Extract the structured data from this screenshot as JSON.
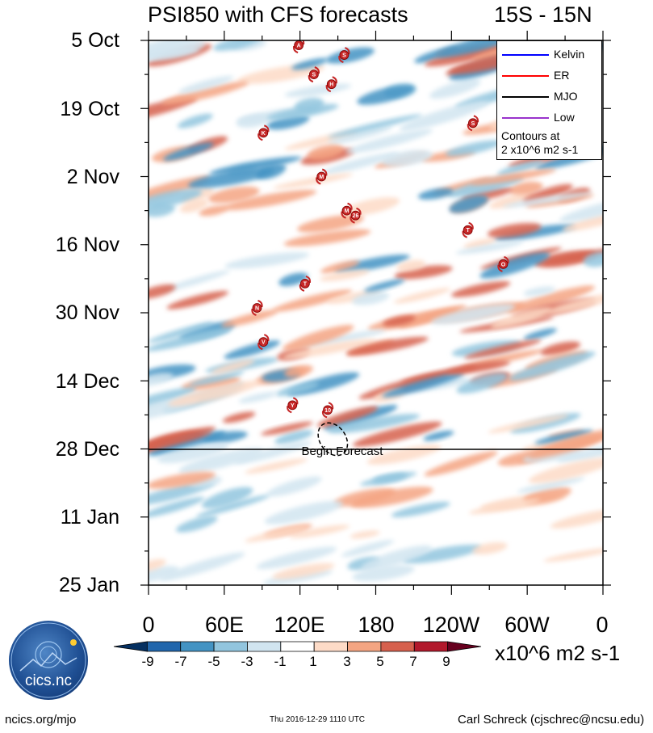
{
  "header": {
    "title": "PSI850 with CFS forecasts",
    "lat_band": "15S - 15N"
  },
  "chart_data": {
    "type": "heatmap",
    "title": "PSI850 with CFS forecasts",
    "subtitle": "15S - 15N",
    "x_tick_labels": [
      "0",
      "60E",
      "120E",
      "180",
      "120W",
      "60W",
      "0"
    ],
    "x_range_deg_east": [
      0,
      360
    ],
    "y_tick_labels": [
      "5 Oct",
      "19 Oct",
      "2 Nov",
      "16 Nov",
      "30 Nov",
      "14 Dec",
      "28 Dec",
      "11 Jan",
      "25 Jan"
    ],
    "y_range": [
      "2016-10-05",
      "2017-01-25"
    ],
    "y_direction": "time increases downward",
    "forecast_start": "28 Dec",
    "forecast_label": "Begin Forecast",
    "legend": {
      "entries": [
        {
          "name": "Kelvin",
          "color": "#0000ff"
        },
        {
          "name": "ER",
          "color": "#ff0000"
        },
        {
          "name": "MJO",
          "color": "#000000"
        },
        {
          "name": "Low",
          "color": "#9933cc"
        }
      ],
      "note_line1": "Contours at",
      "note_line2": "2 x10^6 m2 s-1",
      "placement": "top-right"
    },
    "colorbar": {
      "labels": [
        "-9",
        "-7",
        "-5",
        "-3",
        "-1",
        "1",
        "3",
        "5",
        "7",
        "9"
      ],
      "colors": [
        "#053061",
        "#2166ac",
        "#4393c3",
        "#92c5de",
        "#d1e5f0",
        "#ffffff",
        "#fddbc7",
        "#f4a582",
        "#d6604d",
        "#b2182b",
        "#67001f"
      ],
      "units": "x10^6 m2 s-1"
    },
    "storms": [
      {
        "label": "A",
        "lon": 119,
        "day": 1
      },
      {
        "label": "S",
        "lon": 155,
        "day": 3
      },
      {
        "label": "S",
        "lon": 131,
        "day": 7
      },
      {
        "label": "H",
        "lon": 145,
        "day": 9
      },
      {
        "label": "S",
        "lon": 257,
        "day": 17
      },
      {
        "label": "K",
        "lon": 91,
        "day": 19
      },
      {
        "label": "M",
        "lon": 137,
        "day": 28
      },
      {
        "label": "M",
        "lon": 157,
        "day": 35
      },
      {
        "label": "26",
        "lon": 164,
        "day": 36
      },
      {
        "label": "T",
        "lon": 253,
        "day": 39
      },
      {
        "label": "O",
        "lon": 281,
        "day": 46
      },
      {
        "label": "T",
        "lon": 124,
        "day": 50
      },
      {
        "label": "N",
        "lon": 86,
        "day": 55
      },
      {
        "label": "V",
        "lon": 91,
        "day": 62
      },
      {
        "label": "Y",
        "lon": 114,
        "day": 75
      },
      {
        "label": "10",
        "lon": 142,
        "day": 76
      }
    ],
    "mjo_contour": {
      "lon_center": 146,
      "day_center": 82
    }
  },
  "footer": {
    "left": "ncics.org/mjo",
    "timestamp": "Thu 2016-12-29 1110 UTC",
    "author": "Carl Schreck (cjschrec@ncsu.edu)",
    "logo_text": "cics.nc",
    "logo_ring_text": "Cooperative Institute for Climate and Satellites"
  }
}
